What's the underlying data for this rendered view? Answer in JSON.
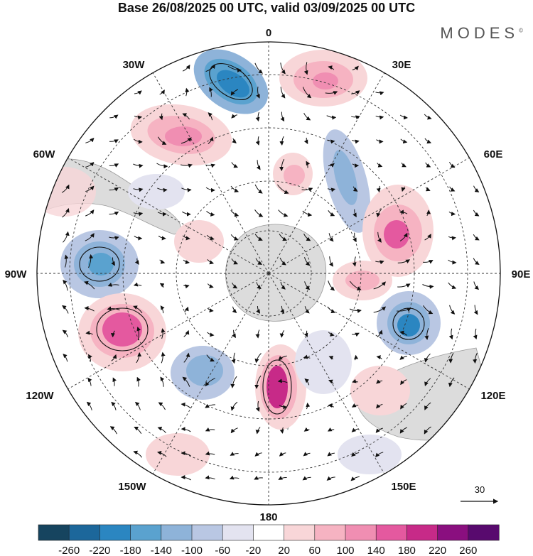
{
  "header": {
    "title": "Base 26/08/2025 00 UTC, valid 03/09/2025 00 UTC",
    "brand": "MODES"
  },
  "map": {
    "projection": "south polar stereographic",
    "longitude_labels": {
      "top": "0",
      "bottom": "180",
      "left": "90W",
      "right": "90E",
      "upper_left_1": "30W",
      "upper_left_2": "60W",
      "upper_right_1": "30E",
      "upper_right_2": "60E",
      "lower_left_1": "120W",
      "lower_left_2": "150W",
      "lower_right_1": "120E",
      "lower_right_2": "150E"
    },
    "reference_vector_label": "30"
  },
  "colorbar": {
    "labels": [
      "-260",
      "-220",
      "-180",
      "-140",
      "-100",
      "-60",
      "-20",
      "20",
      "60",
      "100",
      "140",
      "180",
      "220",
      "260"
    ],
    "colors": [
      "#16445f",
      "#1c679b",
      "#2b86c1",
      "#5aa2cf",
      "#8eb3d9",
      "#b9c7e3",
      "#e3e3f0",
      "#ffffff",
      "#f8d6d8",
      "#f6b3c2",
      "#f08eb2",
      "#e4599f",
      "#c72a88",
      "#8a0f7f",
      "#580a6e"
    ],
    "anomaly_colors": {
      "blue_strong": "#1c679b",
      "blue_mid": "#5aa2cf",
      "blue_light": "#b9c7e3",
      "pink_strong": "#c72a88",
      "pink_mid": "#e4599f",
      "pink_light": "#f6b3c2",
      "land": "#d9d9d9"
    }
  }
}
